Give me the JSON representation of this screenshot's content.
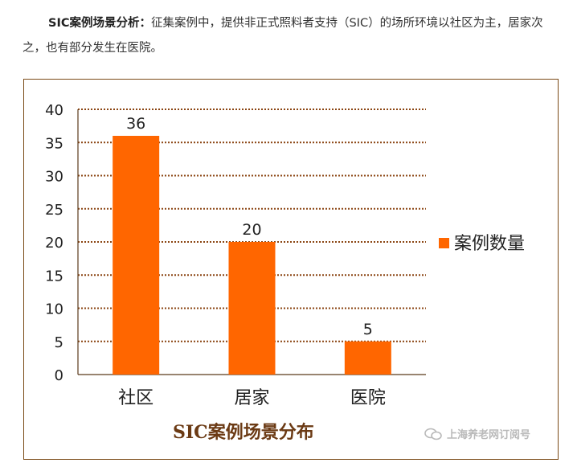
{
  "intro": {
    "bold": "SIC案例场景分析：",
    "text": "征集案例中，提供非正式照料者支持（SIC）的场所环境以社区为主，居家次之，也有部分发生在医院。"
  },
  "chart_data": {
    "type": "bar",
    "title": "SIC案例场景分布",
    "categories": [
      "社区",
      "居家",
      "医院"
    ],
    "series": [
      {
        "name": "案例数量",
        "values": [
          36,
          20,
          5
        ]
      }
    ],
    "ylim": [
      0,
      40
    ],
    "yticks": [
      0,
      5,
      10,
      15,
      20,
      25,
      30,
      35,
      40
    ],
    "grid": true,
    "legend": "right",
    "colors": {
      "bar": "#ff6600",
      "grid": "#8b4513",
      "axis": "#5a3a1a",
      "title": "#6b3a14"
    }
  },
  "watermark": {
    "text": "上海养老网订阅号",
    "icon": "wechat-icon"
  }
}
